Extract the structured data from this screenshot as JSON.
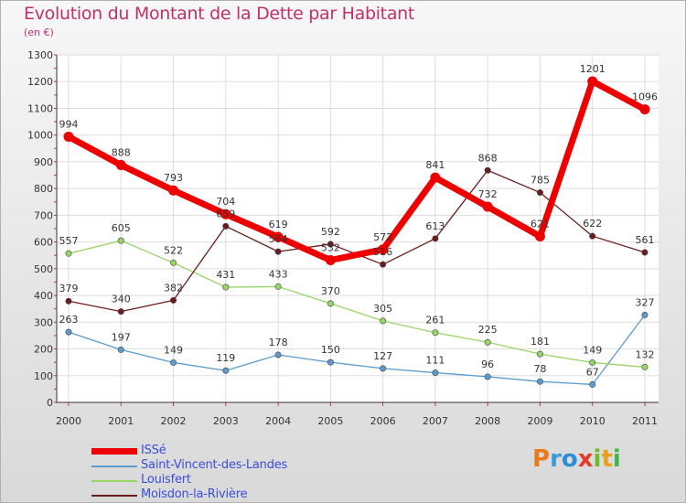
{
  "title": "Evolution du Montant de la Dette par Habitant",
  "subtitle": "(en €)",
  "logo": {
    "text": "Proxiti",
    "letters": [
      "P",
      "r",
      "o",
      "x",
      "i",
      "t",
      "i"
    ],
    "colors": [
      "#e87a1c",
      "#3c9ad8",
      "#2a8fd6",
      "#e83a2a",
      "#6bbd2a",
      "#e8a01c",
      "#3cb84a"
    ]
  },
  "chart_data": {
    "type": "line",
    "categories": [
      "2000",
      "2001",
      "2002",
      "2003",
      "2004",
      "2005",
      "2006",
      "2007",
      "2008",
      "2009",
      "2010",
      "2011"
    ],
    "ylim": [
      0,
      1300
    ],
    "yticks": [
      0,
      100,
      200,
      300,
      400,
      500,
      600,
      700,
      800,
      900,
      1000,
      1100,
      1200,
      1300
    ],
    "grid": true,
    "legend_position": "bottom-left",
    "series": [
      {
        "name": "ISSé",
        "color": "#ee0000",
        "values": [
          994,
          888,
          793,
          704,
          619,
          532,
          572,
          841,
          732,
          621,
          1201,
          1096
        ]
      },
      {
        "name": "Saint-Vincent-des-Landes",
        "color": "#5b9bd0",
        "values": [
          263,
          197,
          149,
          119,
          178,
          150,
          127,
          111,
          96,
          78,
          67,
          327
        ]
      },
      {
        "name": "Louisfert",
        "color": "#99d566",
        "values": [
          557,
          605,
          522,
          431,
          433,
          370,
          305,
          261,
          225,
          181,
          149,
          132
        ]
      },
      {
        "name": "Moisdon-la-Rivière",
        "color": "#6b1d1d",
        "values": [
          379,
          340,
          382,
          659,
          564,
          592,
          516,
          613,
          868,
          785,
          622,
          561
        ]
      }
    ]
  }
}
